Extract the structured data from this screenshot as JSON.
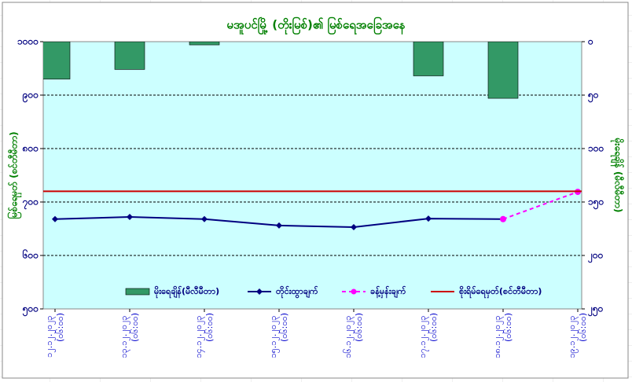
{
  "chart_data": {
    "type": "combo",
    "title": "မအူပင်မြို့ (တိုးမြစ်)၏ မြစ်ရေအခြေအနေ",
    "ylabel": "မြစ်ရေမှတ် (စင်တီမီတာ)",
    "y2label": "မိုးရေချိန် (မီလီမီတာ)",
    "categories": [
      "၁၂.၁၂.၂၀၂၃ (၀၆:၀၀)",
      "၁၃.၁၂.၂၀၂၃ (၀၆:၀၀)",
      "၁၄.၁၂.၂၀၂၃ (၀၆:၀၀)",
      "၁၅.၁၂.၂၀၂၃ (၀၆:၀၀)",
      "၁၆.၁၂.၂၀၂၃ (၀၆:၀၀)",
      "၁၇.၁၂.၂၀၂၃ (၀၆:၀၀)",
      "၁၈.၁၂.၂၀၂၃ (၀၆:၀၀)",
      "၁၉.၁၂.၂၀၂၃ (၀၆:၀၀)"
    ],
    "ylim": [
      500,
      1000
    ],
    "yticks": [
      {
        "value": 500,
        "label": "၅၀၀"
      },
      {
        "value": 600,
        "label": "၆၀၀"
      },
      {
        "value": 700,
        "label": "၇၀၀"
      },
      {
        "value": 800,
        "label": "၈၀၀"
      },
      {
        "value": 900,
        "label": "၉၀၀"
      },
      {
        "value": 1000,
        "label": "၁၀၀၀"
      }
    ],
    "y2lim": [
      250,
      0
    ],
    "y2ticks": [
      {
        "value": 0,
        "label": "၀"
      },
      {
        "value": 50,
        "label": "၅၀"
      },
      {
        "value": 100,
        "label": "၁၀၀"
      },
      {
        "value": 150,
        "label": "၁၅၀"
      },
      {
        "value": 200,
        "label": "၂၀၀"
      },
      {
        "value": 250,
        "label": "၂၅၀"
      }
    ],
    "grid": true,
    "series": [
      {
        "name": "မိုးရေချိန်(မီလီမီတာ)",
        "kind": "bar",
        "axis": "y2",
        "color": "#339966",
        "values": [
          35,
          26,
          3,
          0,
          0,
          32,
          53,
          0
        ]
      },
      {
        "name": "တိုင်းထွာချက်",
        "kind": "line",
        "color": "#000080",
        "values": [
          668,
          672,
          668,
          656,
          653,
          669,
          668,
          null
        ]
      },
      {
        "name": "ခန့်မှန်းချက်",
        "kind": "dashed",
        "color": "#ff00ff",
        "values": [
          null,
          null,
          null,
          null,
          null,
          null,
          668,
          719
        ]
      },
      {
        "name": "စိုးရိမ်ရေမှတ်(စင်တီမီတာ)",
        "kind": "hline",
        "color": "#cc0000",
        "value": 720
      }
    ]
  }
}
